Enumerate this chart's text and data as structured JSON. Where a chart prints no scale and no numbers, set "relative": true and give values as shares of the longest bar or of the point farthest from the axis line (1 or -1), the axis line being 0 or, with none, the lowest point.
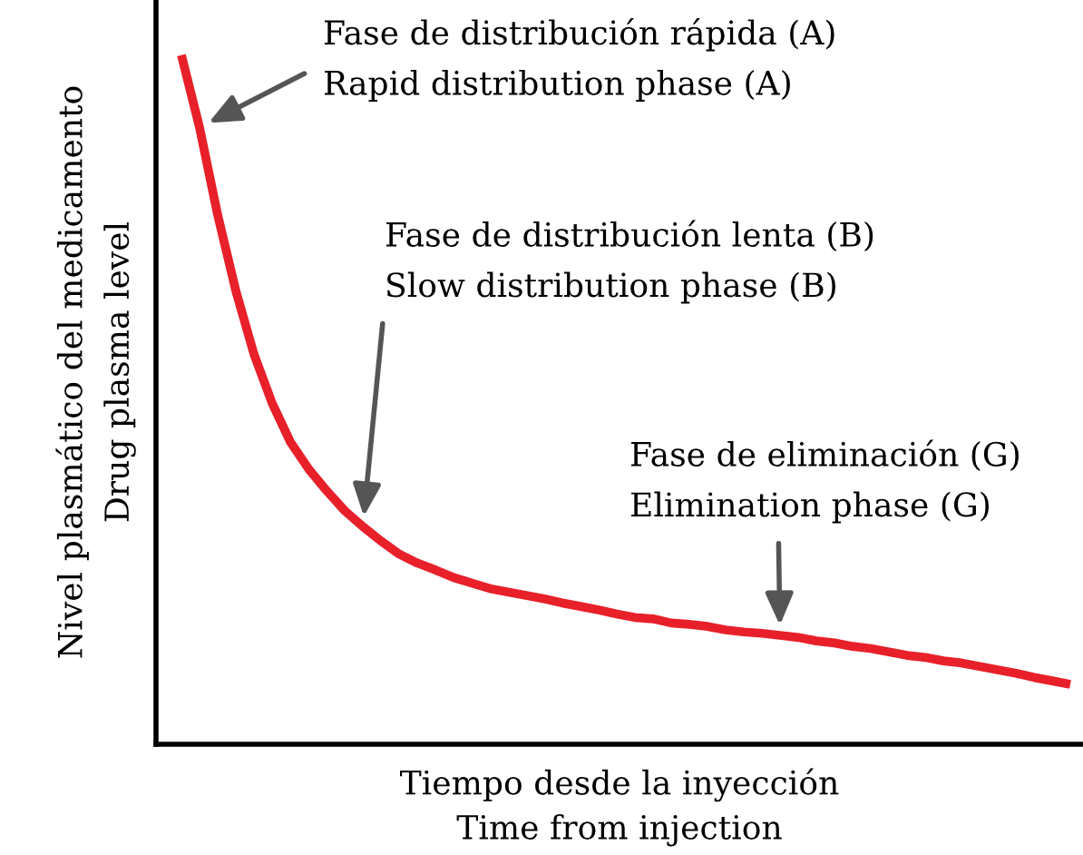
{
  "chart_data": {
    "type": "line",
    "relative": true,
    "xlabel": "Tiempo desde la inyección\nTime from injection",
    "ylabel": "Nivel plasmático del medicamento\nDrug plasma level",
    "categories": [
      null,
      null,
      null,
      null,
      null,
      null,
      null,
      null,
      null,
      null,
      null,
      null,
      null,
      null,
      null,
      null,
      null,
      null,
      null,
      null,
      null,
      null,
      null,
      null,
      null,
      null,
      null,
      null,
      null,
      null,
      null,
      null,
      null,
      null,
      null,
      null,
      null,
      null,
      null,
      null,
      null,
      null,
      null,
      null,
      null,
      null,
      null,
      null,
      null,
      null
    ],
    "series": [
      {
        "color": "#e8202a",
        "values": [
          1.0,
          0.895,
          0.768,
          0.658,
          0.566,
          0.495,
          0.439,
          0.4,
          0.368,
          0.339,
          0.316,
          0.295,
          0.276,
          0.263,
          0.253,
          0.242,
          0.234,
          0.226,
          0.221,
          0.216,
          0.211,
          0.205,
          0.2,
          0.195,
          0.189,
          0.184,
          0.182,
          0.176,
          0.174,
          0.171,
          0.166,
          0.163,
          0.161,
          0.158,
          0.155,
          0.15,
          0.147,
          0.142,
          0.139,
          0.134,
          0.129,
          0.126,
          0.121,
          0.118,
          0.113,
          0.108,
          0.103,
          0.097,
          0.092,
          0.087
        ]
      }
    ],
    "annotations": [
      "Fase de distribución rápida (A)\nRapid distribution phase (A)",
      "Fase de distribución lenta (B)\nSlow distribution phase (B)",
      "Fase de eliminación (G)\nElimination phase (G)"
    ],
    "grid": false,
    "legend": false,
    "marker": "none",
    "line_style": "solid"
  }
}
